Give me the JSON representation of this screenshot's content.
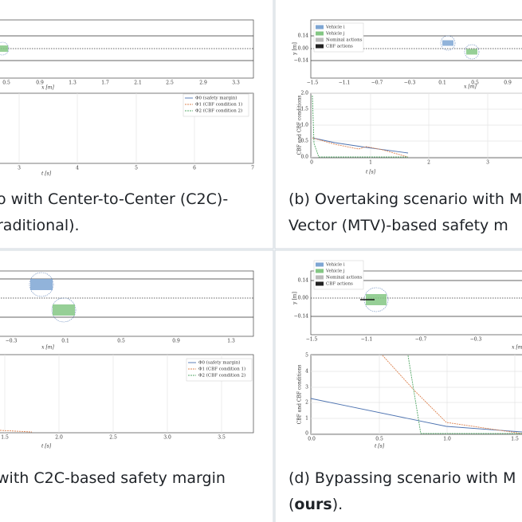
{
  "panels": [
    {
      "top": {
        "xticks": [
          "0.5",
          "0.9",
          "1.3",
          "1.7",
          "2.1",
          "2.5",
          "2.9",
          "3.3"
        ],
        "xlabel": "x [m]"
      },
      "bottom": {
        "xticks": [
          "3",
          "4",
          "5",
          "6",
          "7"
        ],
        "xlabel": "t [s]",
        "legend": [
          "Φ0 (safety margin)",
          "Φ1 (CBF condition 1)",
          "Φ2 (CBF condition 2)"
        ]
      },
      "caption": [
        "o with Center-to-Center (C2C)-",
        "raditional)."
      ]
    },
    {
      "top": {
        "xticks": [
          "−1.5",
          "−1.1",
          "−0.7",
          "−0.3",
          "0.1",
          "0.5",
          "0.9"
        ],
        "xlabel": "x [m]",
        "ylabel": "y [m]",
        "yticks": [
          "0.14",
          "0.00",
          "−0.14"
        ],
        "legend": [
          "Vehicle i",
          "Vehicle j",
          "Nominal actions",
          "CBF actions"
        ]
      },
      "bottom": {
        "xticks": [
          "0",
          "1",
          "2",
          "3"
        ],
        "xlabel": "t [s]",
        "ylabel": "CBF and CBF conditions",
        "yticks": [
          "2.0",
          "1.5",
          "1.0",
          "0.5",
          "0.0"
        ]
      },
      "caption": [
        "(b) Overtaking scenario with M",
        "Vector (MTV)-based safety m"
      ]
    },
    {
      "top": {
        "xticks": [
          "−0.3",
          "0.1",
          "0.5",
          "0.9",
          "1.3"
        ],
        "xlabel": "x [m]"
      },
      "bottom": {
        "xticks": [
          "1.5",
          "2.0",
          "2.5",
          "3.0",
          "3.5"
        ],
        "xlabel": "t [s]",
        "legend": [
          "Φ0 (safety margin)",
          "Φ1 (CBF condition 1)",
          "Φ2 (CBF condition 2)"
        ]
      },
      "caption": [
        "with C2C-based safety margin"
      ]
    },
    {
      "top": {
        "xticks": [
          "−1.5",
          "−1.1",
          "−0.7",
          "−0.3"
        ],
        "xlabel": "x [m]",
        "ylabel": "y [m]",
        "yticks": [
          "0.14",
          "0.00",
          "−0.14"
        ],
        "legend": [
          "Vehicle i",
          "Vehicle j",
          "Nominal actions",
          "CBF actions"
        ]
      },
      "bottom": {
        "xticks": [
          "0.0",
          "0.5",
          "1.0",
          "1.5"
        ],
        "xlabel": "t [s]",
        "ylabel": "CBF and CBF conditions",
        "yticks": [
          "5",
          "4",
          "3",
          "2",
          "1",
          "0"
        ]
      },
      "caption": [
        "(d) Bypassing scenario with M",
        "(ours)."
      ]
    }
  ]
}
